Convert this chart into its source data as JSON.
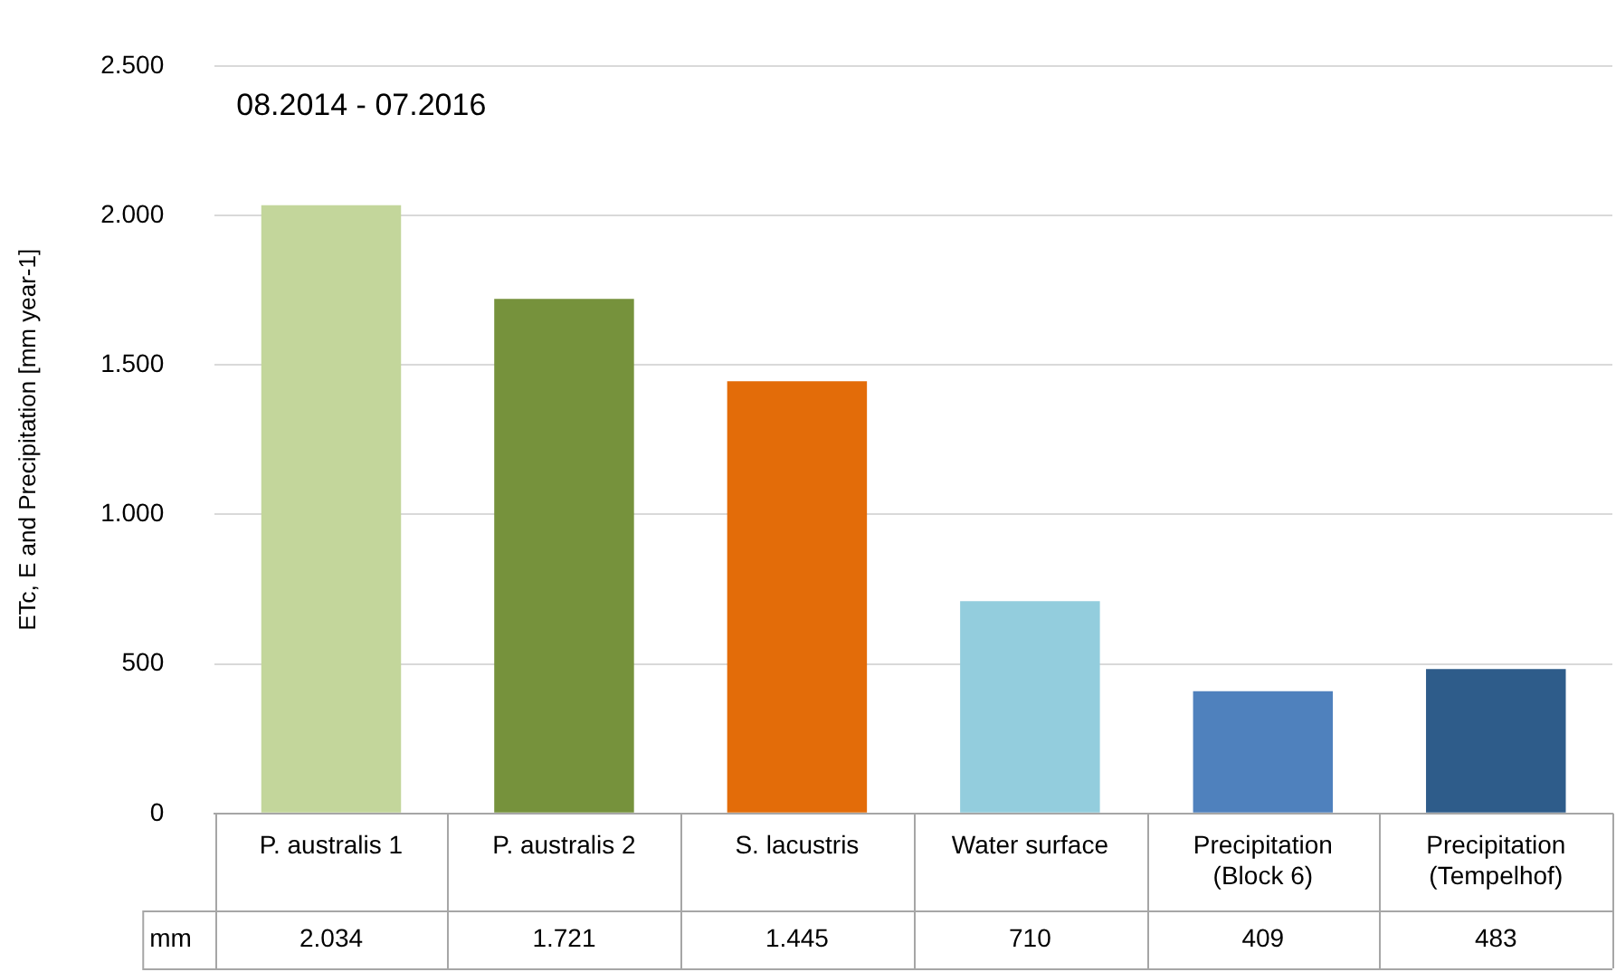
{
  "chart_data": {
    "type": "bar",
    "title": "08.2014 - 07.2016",
    "ylabel": "ETc, E and Precipitation [mm year-1]",
    "categories": [
      "P. australis 1",
      "P. australis 2",
      "S. lacustris",
      "Water surface",
      "Precipitation (Block 6)",
      "Precipitation (Tempelhof)"
    ],
    "values": [
      2034,
      1721,
      1445,
      710,
      409,
      483
    ],
    "colors": [
      "#c3d69b",
      "#76923c",
      "#e36c09",
      "#93cddd",
      "#4f81bd",
      "#2e5c8a"
    ],
    "value_labels": [
      "2.034",
      "1.721",
      "1.445",
      "710",
      "409",
      "483"
    ],
    "annotations": [
      "mm"
    ],
    "ylim": [
      0,
      2500
    ],
    "yticks": [
      {
        "value": 0,
        "label": "0"
      },
      {
        "value": 500,
        "label": "500"
      },
      {
        "value": 1000,
        "label": "1.000"
      },
      {
        "value": 1500,
        "label": "1.500"
      },
      {
        "value": 2000,
        "label": "2.000"
      },
      {
        "value": 2500,
        "label": "2.500"
      }
    ],
    "grid": "y",
    "legend": false
  }
}
